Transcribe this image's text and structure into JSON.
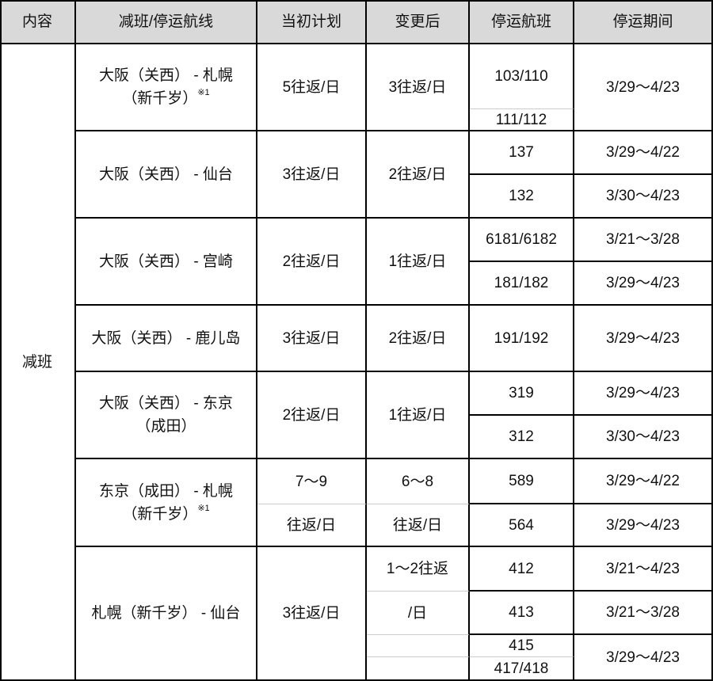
{
  "headers": [
    "内容",
    "减班/停运航线",
    "当初计划",
    "变更后",
    "停运航班",
    "停运期间"
  ],
  "category": "减班",
  "footnote": "※1",
  "routes": [
    {
      "route_l1": "大阪（关西） - 札幌",
      "route_l2": "（新千岁）",
      "plan": "5往返/日",
      "after": "3往返/日",
      "flights": [
        "103/110",
        "111/112"
      ],
      "periods": [
        "3/29～4/23"
      ]
    },
    {
      "route": "大阪（关西） - 仙台",
      "plan": "3往返/日",
      "after": "2往返/日",
      "flights": [
        "137",
        "132"
      ],
      "periods": [
        "3/29～4/22",
        "3/30～4/23"
      ]
    },
    {
      "route": "大阪（关西） - 宫崎",
      "plan": "2往返/日",
      "after": "1往返/日",
      "flights": [
        "6181/6182",
        "181/182"
      ],
      "periods": [
        "3/21～3/28",
        "3/29～4/23"
      ]
    },
    {
      "route": "大阪（关西） - 鹿儿岛",
      "plan": "3往返/日",
      "after": "2往返/日",
      "flights": [
        "191/192"
      ],
      "periods": [
        "3/29～4/23"
      ]
    },
    {
      "route_l1": "大阪（关西） - 东京",
      "route_l2": "（成田）",
      "plan": "2往返/日",
      "after": "1往返/日",
      "flights": [
        "319",
        "312"
      ],
      "periods": [
        "3/29～4/23",
        "3/30～4/23"
      ]
    },
    {
      "route_l1": "东京（成田） - 札幌",
      "route_l2": "（新千岁）",
      "plan_l1": "7～9",
      "plan_l2": "往返/日",
      "after_l1": "6～8",
      "after_l2": "往返/日",
      "flights": [
        "589",
        "564"
      ],
      "periods": [
        "3/29～4/22",
        "3/29～4/23"
      ]
    },
    {
      "route": "札幌（新千岁） - 仙台",
      "plan": "3往返/日",
      "after_l1": "1～2往返",
      "after_l2": "/日",
      "flights": [
        "412",
        "413",
        "415",
        "417/418"
      ],
      "periods": [
        "3/21～4/23",
        "3/21～3/28",
        "3/29～4/23"
      ]
    }
  ]
}
